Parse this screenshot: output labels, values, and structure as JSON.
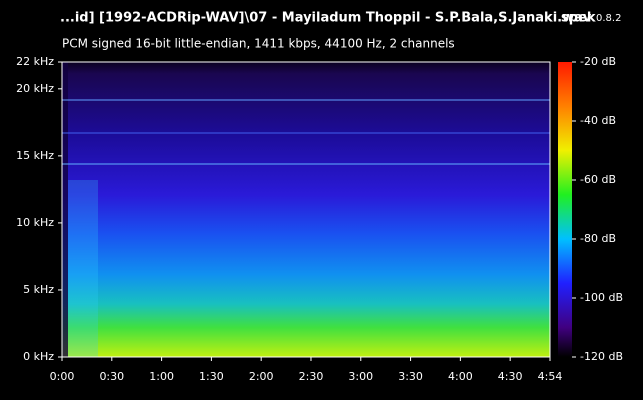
{
  "chart_data": {
    "type": "spectrogram",
    "title": "...id] [1992-ACDRip-WAV]\\07 - Mayiladum Thoppil - S.P.Bala,S.Janaki.wav",
    "subtitle": "PCM signed 16-bit little-endian, 1411 kbps, 44100 Hz, 2 channels",
    "app_name": "spek",
    "app_version": "0.8.2",
    "xlim": [
      0,
      294
    ],
    "xticks": [
      {
        "value": 0,
        "label": "0:00"
      },
      {
        "value": 30,
        "label": "0:30"
      },
      {
        "value": 60,
        "label": "1:00"
      },
      {
        "value": 90,
        "label": "1:30"
      },
      {
        "value": 120,
        "label": "2:00"
      },
      {
        "value": 150,
        "label": "2:30"
      },
      {
        "value": 180,
        "label": "3:00"
      },
      {
        "value": 210,
        "label": "3:30"
      },
      {
        "value": 240,
        "label": "4:00"
      },
      {
        "value": 270,
        "label": "4:30"
      },
      {
        "value": 294,
        "label": "4:54"
      }
    ],
    "ylim": [
      0,
      22
    ],
    "yticks": [
      {
        "value": 0,
        "label": "0 kHz"
      },
      {
        "value": 5,
        "label": "5 kHz"
      },
      {
        "value": 10,
        "label": "10 kHz"
      },
      {
        "value": 15,
        "label": "15 kHz"
      },
      {
        "value": 20,
        "label": "20 kHz"
      },
      {
        "value": 22,
        "label": "22 kHz"
      }
    ],
    "clim": [
      -120,
      -20
    ],
    "cticks": [
      {
        "value": -20,
        "label": "-20 dB"
      },
      {
        "value": -40,
        "label": "-40 dB"
      },
      {
        "value": -60,
        "label": "-60 dB"
      },
      {
        "value": -80,
        "label": "-80 dB"
      },
      {
        "value": -100,
        "label": "-100 dB"
      },
      {
        "value": -120,
        "label": "-120 dB"
      }
    ]
  }
}
